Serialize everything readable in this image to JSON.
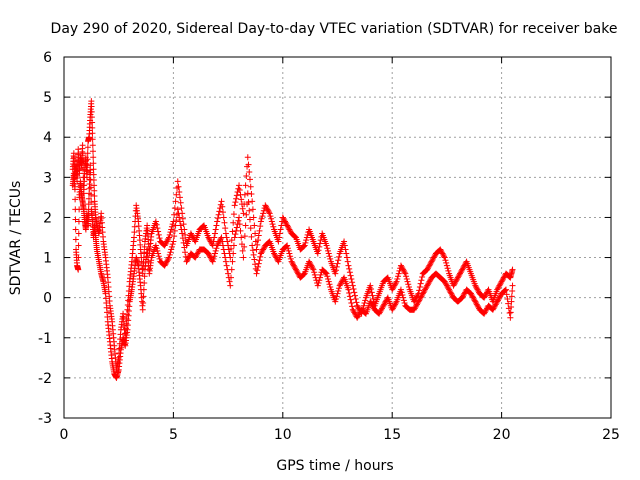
{
  "chart_data": {
    "type": "scatter",
    "title": "Day 290 of 2020, Sidereal Day-to-day VTEC variation (SDTVAR) for receiver bake",
    "xlabel": "GPS time / hours",
    "ylabel": "SDTVAR / TECUs",
    "xlim": [
      0,
      25
    ],
    "ylim": [
      -3,
      6
    ],
    "x_ticks": [
      0,
      5,
      10,
      15,
      20,
      25
    ],
    "y_ticks": [
      -3,
      -2,
      -1,
      0,
      1,
      2,
      3,
      4,
      5,
      6
    ],
    "x_tick_labels": [
      "0",
      "5",
      "10",
      "15",
      "20",
      "25"
    ],
    "y_tick_labels": [
      "-3",
      "-2",
      "-1",
      "0",
      "1",
      "2",
      "3",
      "4",
      "5",
      "6"
    ],
    "grid": true,
    "marker": "+",
    "series": [
      {
        "name": "SDTVAR",
        "color": "#ff0000",
        "x": [
          0.4,
          0.45,
          0.5,
          0.55,
          0.6,
          0.65,
          0.7,
          0.75,
          0.8,
          0.85,
          0.9,
          0.95,
          1.0,
          1.05,
          1.1,
          1.15,
          1.2,
          1.25,
          1.3,
          1.35,
          1.4,
          1.45,
          1.5,
          1.6,
          1.7,
          1.8,
          1.9,
          2.0,
          2.1,
          2.2,
          2.3,
          2.4,
          2.5,
          2.6,
          2.7,
          2.8,
          2.9,
          3.0,
          3.1,
          3.2,
          3.3,
          3.4,
          3.5,
          3.6,
          3.7,
          3.8,
          3.9,
          4.0,
          4.2,
          4.4,
          4.6,
          4.8,
          5.0,
          5.2,
          5.4,
          5.6,
          5.8,
          6.0,
          6.2,
          6.4,
          6.6,
          6.8,
          7.0,
          7.2,
          7.4,
          7.6,
          7.8,
          8.0,
          8.2,
          8.4,
          8.6,
          8.8,
          9.0,
          9.2,
          9.4,
          9.6,
          9.8,
          10.0,
          10.2,
          10.4,
          10.6,
          10.8,
          11.0,
          11.2,
          11.4,
          11.6,
          11.8,
          12.0,
          12.2,
          12.4,
          12.6,
          12.8,
          13.0,
          13.2,
          13.4,
          13.6,
          13.8,
          14.0,
          14.2,
          14.4,
          14.6,
          14.8,
          15.0,
          15.2,
          15.4,
          15.6,
          15.8,
          16.0,
          16.2,
          16.4,
          16.6,
          16.8,
          17.0,
          17.2,
          17.4,
          17.6,
          17.8,
          18.0,
          18.2,
          18.4,
          18.6,
          18.8,
          19.0,
          19.2,
          19.4,
          19.6,
          19.8,
          20.0,
          20.2,
          20.4,
          20.5
        ],
        "values": [
          3.2,
          3.6,
          3.0,
          3.4,
          2.9,
          3.7,
          3.1,
          3.5,
          3.3,
          3.8,
          2.6,
          3.2,
          3.5,
          3.0,
          3.9,
          4.0,
          4.5,
          4.9,
          4.1,
          3.2,
          2.4,
          2.0,
          1.8,
          1.6,
          2.1,
          1.4,
          1.0,
          0.5,
          -0.2,
          -0.6,
          -1.2,
          -1.8,
          -1.5,
          -0.8,
          -0.4,
          -1.0,
          -0.3,
          0.4,
          0.9,
          1.5,
          2.3,
          1.9,
          1.2,
          0.6,
          1.4,
          1.8,
          1.1,
          1.6,
          1.9,
          1.4,
          1.3,
          1.5,
          1.9,
          2.9,
          2.1,
          1.3,
          1.6,
          1.4,
          1.7,
          1.8,
          1.5,
          1.3,
          1.9,
          2.4,
          1.6,
          1.0,
          2.3,
          2.8,
          2.1,
          3.5,
          2.4,
          1.2,
          1.9,
          2.3,
          2.1,
          1.7,
          1.4,
          2.0,
          1.8,
          1.6,
          1.5,
          1.2,
          1.3,
          1.7,
          1.4,
          1.1,
          1.6,
          1.3,
          0.9,
          0.6,
          1.1,
          1.4,
          0.8,
          0.3,
          -0.2,
          -0.4,
          0.0,
          0.3,
          -0.2,
          0.1,
          0.4,
          0.5,
          0.2,
          0.4,
          0.8,
          0.6,
          0.2,
          -0.1,
          0.1,
          0.6,
          0.7,
          0.9,
          1.1,
          1.2,
          1.0,
          0.6,
          0.3,
          0.5,
          0.7,
          0.9,
          0.6,
          0.3,
          0.1,
          0.0,
          0.2,
          -0.1,
          0.2,
          0.4,
          0.6,
          0.5,
          0.7
        ],
        "values_lower": [
          2.8,
          3.1,
          2.7,
          1.2,
          0.8,
          0.7,
          2.5,
          2.9,
          2.6,
          2.4,
          2.2,
          1.9,
          1.7,
          2.1,
          1.8,
          2.6,
          3.3,
          2.2,
          1.9,
          1.5,
          1.8,
          1.5,
          1.2,
          0.9,
          0.6,
          0.4,
          0.1,
          -0.6,
          -1.1,
          -1.6,
          -1.9,
          -2.0,
          -1.8,
          -1.3,
          -1.0,
          -1.2,
          -0.8,
          -0.1,
          0.2,
          0.6,
          1.0,
          0.8,
          0.3,
          -0.3,
          0.7,
          1.2,
          0.6,
          1.0,
          1.3,
          0.9,
          0.8,
          1.0,
          1.4,
          2.2,
          1.6,
          0.9,
          1.1,
          1.0,
          1.2,
          1.2,
          1.1,
          0.9,
          1.3,
          1.5,
          0.9,
          0.3,
          1.5,
          2.0,
          1.0,
          2.6,
          1.3,
          0.6,
          1.1,
          1.3,
          1.4,
          1.1,
          0.9,
          1.2,
          1.3,
          0.9,
          0.7,
          0.5,
          0.6,
          0.9,
          0.7,
          0.3,
          0.7,
          0.6,
          0.2,
          -0.1,
          0.3,
          0.5,
          0.2,
          -0.3,
          -0.5,
          -0.3,
          -0.4,
          -0.1,
          -0.3,
          -0.4,
          -0.2,
          0.0,
          -0.3,
          -0.1,
          0.2,
          -0.2,
          -0.3,
          -0.3,
          -0.1,
          0.1,
          0.3,
          0.5,
          0.6,
          0.5,
          0.4,
          0.2,
          0.0,
          -0.1,
          0.0,
          0.2,
          0.1,
          -0.1,
          -0.3,
          -0.4,
          -0.2,
          -0.3,
          -0.1,
          0.1,
          0.2,
          -0.5,
          0.3
        ]
      }
    ]
  }
}
